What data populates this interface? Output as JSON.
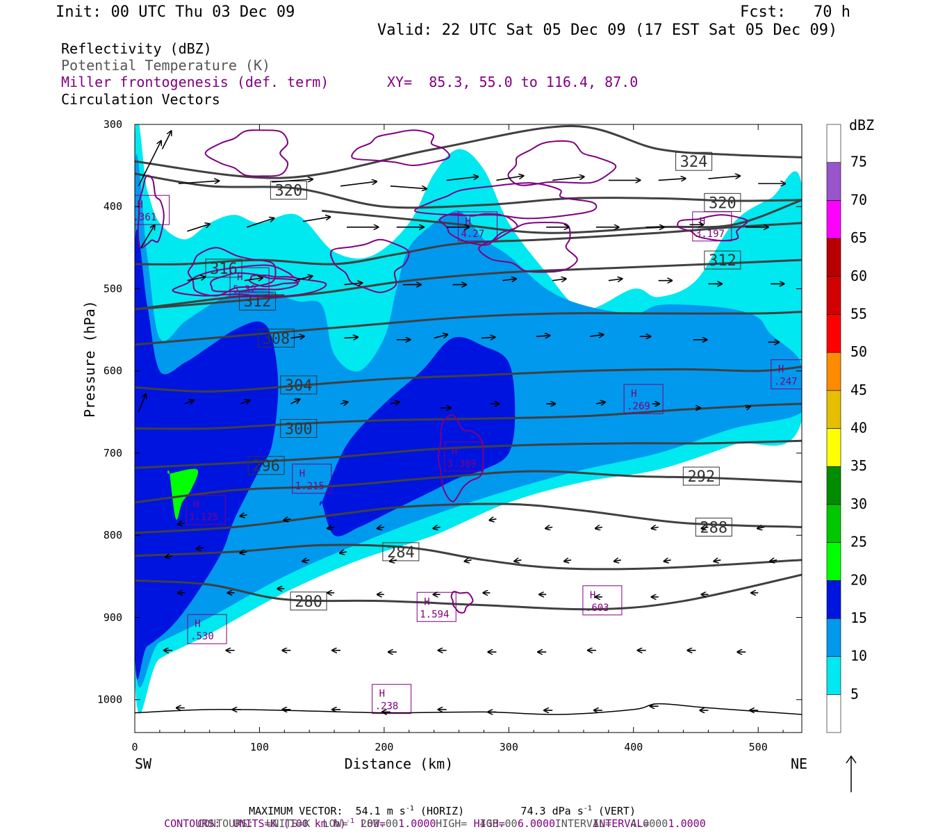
{
  "header": {
    "init": "Init: 00 UTC Thu 03 Dec 09",
    "fcst": "Fcst:   70 h",
    "valid": "Valid: 22 UTC Sat 05 Dec 09 (17 EST Sat 05 Dec 09)"
  },
  "legend": {
    "reflectivity": "Reflectivity (dBZ)",
    "theta": "Potential Temperature (K)",
    "frontogenesis": "Miller frontogenesis (def. term)",
    "xy": "XY=  85.3, 55.0 to 116.4, 87.0",
    "vectors": "Circulation Vectors"
  },
  "colorbar": {
    "title": "dBZ",
    "levels": [
      "5",
      "10",
      "15",
      "20",
      "25",
      "30",
      "35",
      "40",
      "45",
      "50",
      "55",
      "60",
      "65",
      "70",
      "75"
    ],
    "colors": [
      "#ffffff",
      "#00e8f0",
      "#0099ee",
      "#0014e0",
      "#00ff00",
      "#00c800",
      "#008c00",
      "#ffff00",
      "#e6c000",
      "#ff8c00",
      "#ff0000",
      "#d40000",
      "#b80000",
      "#ff00ff",
      "#9955cc",
      "#ffffff"
    ]
  },
  "footer": {
    "max_vector_label": "MAXIMUM VECTOR:",
    "max_horiz": "54.1 m s",
    "horiz_tag": "(HORIZ)",
    "max_vert": "74.3 dPa s",
    "vert_tag": "(VERT)",
    "sup": "-1",
    "contours1_a": "CONTOURS:  UNITS=K (100 km h)",
    "contours1_b": " LOW=  1.0000      HIGH=  6.0000      INTERVAL=   1.0000",
    "contours2": "CONTOURS:  UNITS=K  LOW=  280.00      HIGH=  408.00      INTERVAL=   4.0000"
  },
  "chart_data": {
    "type": "cross-section",
    "xlabel": "Distance (km)",
    "ylabel": "Pressure (hPa)",
    "x_ticks": [
      0,
      100,
      200,
      300,
      400,
      500
    ],
    "y_ticks": [
      300,
      400,
      500,
      600,
      700,
      800,
      900,
      1000
    ],
    "xlim": [
      0,
      535
    ],
    "ylim": [
      300,
      1040
    ],
    "left_end": "SW",
    "right_end": "NE",
    "theta_contours": [
      {
        "label": "324",
        "x": [
          0,
          120,
          240,
          350,
          420,
          480,
          535
        ],
        "p": [
          345,
          365,
          330,
          302,
          330,
          337,
          340
        ],
        "label_x": 435,
        "label_p": 345
      },
      {
        "label": "320",
        "x": [
          0,
          60,
          130,
          200,
          280,
          350,
          420,
          480,
          535
        ],
        "p": [
          360,
          375,
          378,
          400,
          398,
          390,
          390,
          393,
          392
        ],
        "label_x": 110,
        "label_p": 380
      },
      {
        "label": "320",
        "x": [
          150,
          250,
          330,
          420,
          480,
          535
        ],
        "p": [
          405,
          420,
          432,
          425,
          422,
          392
        ],
        "label_x": 458,
        "label_p": 395
      },
      {
        "label": "316",
        "x": [
          0,
          40,
          100,
          160,
          210,
          260,
          330,
          420,
          480,
          535
        ],
        "p": [
          470,
          470,
          465,
          470,
          458,
          445,
          440,
          432,
          425,
          420
        ],
        "label_x": 58,
        "label_p": 475
      },
      {
        "label": "312",
        "x": [
          0,
          80,
          150,
          220,
          300,
          380,
          460,
          535
        ],
        "p": [
          525,
          515,
          505,
          490,
          480,
          475,
          470,
          465
        ],
        "label_x": 458,
        "label_p": 465
      },
      {
        "label": "312",
        "x": [
          0,
          80,
          120
        ],
        "p": [
          525,
          510,
          508
        ],
        "label_x": 85,
        "label_p": 515
      },
      {
        "label": "308",
        "x": [
          0,
          100,
          180,
          260,
          340,
          420,
          500,
          535
        ],
        "p": [
          568,
          555,
          545,
          535,
          530,
          530,
          530,
          528
        ],
        "label_x": 100,
        "label_p": 560
      },
      {
        "label": "304",
        "x": [
          0,
          60,
          130,
          200,
          280,
          360,
          440,
          500,
          535
        ],
        "p": [
          620,
          625,
          618,
          610,
          605,
          600,
          598,
          600,
          595
        ],
        "label_x": 118,
        "label_p": 617
      },
      {
        "label": "300",
        "x": [
          0,
          60,
          120,
          200,
          280,
          360,
          440,
          500,
          535
        ],
        "p": [
          670,
          670,
          665,
          660,
          658,
          655,
          647,
          642,
          640
        ],
        "label_x": 118,
        "label_p": 670
      },
      {
        "label": "296",
        "x": [
          0,
          80,
          160,
          240,
          320,
          400,
          460,
          535
        ],
        "p": [
          718,
          712,
          705,
          695,
          690,
          688,
          688,
          685
        ],
        "label_x": 92,
        "label_p": 715
      },
      {
        "label": "292",
        "x": [
          0,
          80,
          160,
          240,
          320,
          400,
          460,
          535
        ],
        "p": [
          760,
          745,
          740,
          730,
          722,
          728,
          730,
          735
        ],
        "label_x": 441,
        "label_p": 728
      },
      {
        "label": "288",
        "x": [
          0,
          80,
          160,
          220,
          300,
          360,
          440,
          535
        ],
        "p": [
          797,
          790,
          775,
          765,
          762,
          770,
          785,
          790
        ],
        "label_x": 451,
        "label_p": 790
      },
      {
        "label": "284",
        "x": [
          0,
          80,
          150,
          220,
          280,
          340,
          420,
          535
        ],
        "p": [
          825,
          820,
          812,
          815,
          830,
          840,
          840,
          830
        ],
        "label_x": 200,
        "label_p": 820
      },
      {
        "label": "280",
        "x": [
          0,
          60,
          120,
          200,
          280,
          370,
          440,
          535
        ],
        "p": [
          855,
          860,
          878,
          880,
          885,
          890,
          880,
          848
        ],
        "label_x": 126,
        "label_p": 880
      },
      {
        "label": "",
        "x": [
          0,
          60,
          120,
          200,
          280,
          340,
          400,
          420,
          460,
          535
        ],
        "p": [
          1016,
          1012,
          1013,
          1016,
          1015,
          1018,
          1012,
          1005,
          1010,
          1018
        ],
        "label_x": 0,
        "label_p": 0
      }
    ],
    "frontogenesis_maxima": [
      {
        "tag": "H",
        "value": ".361",
        "x": 12,
        "p": 405
      },
      {
        "tag": "H",
        "value": "5.32",
        "x": 92,
        "p": 493
      },
      {
        "tag": "H",
        "value": "4.27",
        "x": 275,
        "p": 425
      },
      {
        "tag": "H",
        "value": "3.197",
        "x": 463,
        "p": 425
      },
      {
        "tag": "H",
        "value": ".269",
        "x": 408,
        "p": 635
      },
      {
        "tag": "H",
        "value": ".247",
        "x": 526,
        "p": 605
      },
      {
        "tag": "H",
        "value": "3.309",
        "x": 264,
        "p": 705
      },
      {
        "tag": "H",
        "value": "1.215",
        "x": 142,
        "p": 732
      },
      {
        "tag": "H",
        "value": "1.125",
        "x": 57,
        "p": 770
      },
      {
        "tag": "H",
        "value": ".530",
        "x": 58,
        "p": 915
      },
      {
        "tag": "H",
        "value": "1.594",
        "x": 242,
        "p": 888
      },
      {
        "tag": "H",
        "value": ".603",
        "x": 375,
        "p": 880
      },
      {
        "tag": "H",
        "value": ".238",
        "x": 206,
        "p": 1000
      }
    ],
    "reflectivity_regions": [
      {
        "dbz": 5,
        "x": [
          0,
          10,
          20,
          40,
          60,
          80,
          100,
          130,
          160,
          190,
          220,
          240,
          260,
          280,
          300,
          330,
          360,
          400,
          420,
          450,
          480,
          510,
          535,
          535,
          480,
          420,
          360,
          300,
          240,
          180,
          120,
          60,
          20,
          0
        ],
        "p": [
          325,
          380,
          420,
          440,
          420,
          410,
          420,
          410,
          455,
          460,
          420,
          360,
          330,
          355,
          420,
          480,
          525,
          500,
          510,
          490,
          420,
          390,
          375,
          660,
          690,
          720,
          735,
          760,
          800,
          830,
          870,
          920,
          950,
          975
        ]
      },
      {
        "dbz": 10,
        "x": [
          0,
          10,
          20,
          40,
          60,
          80,
          100,
          130,
          150,
          160,
          180,
          200,
          210,
          220,
          240,
          250,
          260,
          270,
          280,
          300,
          330,
          360,
          400,
          420,
          450,
          480,
          500,
          510,
          530,
          535,
          535,
          480,
          420,
          360,
          300,
          240,
          180,
          120,
          60,
          20,
          0
        ],
        "p": [
          360,
          460,
          560,
          540,
          520,
          505,
          500,
          515,
          520,
          580,
          600,
          560,
          500,
          450,
          420,
          410,
          405,
          420,
          440,
          460,
          500,
          520,
          530,
          520,
          520,
          525,
          535,
          555,
          580,
          600,
          650,
          670,
          700,
          720,
          745,
          775,
          810,
          850,
          900,
          930,
          945
        ]
      },
      {
        "dbz": 15,
        "x": [
          0,
          10,
          20,
          40,
          60,
          80,
          100,
          110,
          115,
          110,
          100,
          80,
          70,
          50,
          30,
          10,
          0
        ],
        "p": [
          450,
          520,
          600,
          590,
          570,
          550,
          540,
          560,
          620,
          690,
          720,
          780,
          820,
          870,
          910,
          935,
          940
        ]
      },
      {
        "dbz": 15,
        "x": [
          150,
          170,
          200,
          230,
          255,
          280,
          300,
          305,
          300,
          280,
          260,
          240,
          220,
          200,
          180,
          160,
          150
        ],
        "p": [
          760,
          690,
          640,
          600,
          560,
          570,
          590,
          650,
          700,
          720,
          730,
          745,
          760,
          775,
          790,
          800,
          760
        ]
      },
      {
        "dbz": 20,
        "x": [
          28,
          50,
          45,
          38,
          33,
          28
        ],
        "p": [
          725,
          720,
          745,
          760,
          780,
          725
        ]
      }
    ],
    "vectors": [
      {
        "x": 3,
        "p": 375,
        "u": 25,
        "w": 50
      },
      {
        "x": 22,
        "p": 330,
        "u": 10,
        "w": 20
      },
      {
        "x": 5,
        "p": 450,
        "u": 15,
        "w": 25
      },
      {
        "x": 35,
        "p": 372,
        "u": 45,
        "w": 3
      },
      {
        "x": 110,
        "p": 370,
        "u": 45,
        "w": 3
      },
      {
        "x": 165,
        "p": 375,
        "u": 40,
        "w": 5
      },
      {
        "x": 205,
        "p": 375,
        "u": 40,
        "w": -3
      },
      {
        "x": 250,
        "p": 368,
        "u": 35,
        "w": 4
      },
      {
        "x": 290,
        "p": 368,
        "u": 30,
        "w": 5
      },
      {
        "x": 335,
        "p": 368,
        "u": 35,
        "w": 4
      },
      {
        "x": 380,
        "p": 368,
        "u": 35,
        "w": 0
      },
      {
        "x": 420,
        "p": 368,
        "u": 30,
        "w": 2
      },
      {
        "x": 460,
        "p": 366,
        "u": 35,
        "w": 3
      },
      {
        "x": 500,
        "p": 372,
        "u": 30,
        "w": 0
      },
      {
        "x": 42,
        "p": 430,
        "u": 25,
        "w": 8
      },
      {
        "x": 90,
        "p": 425,
        "u": 30,
        "w": 10
      },
      {
        "x": 135,
        "p": 418,
        "u": 30,
        "w": 5
      },
      {
        "x": 170,
        "p": 425,
        "u": 35,
        "w": 0
      },
      {
        "x": 210,
        "p": 425,
        "u": 30,
        "w": 0
      },
      {
        "x": 250,
        "p": 425,
        "u": 25,
        "w": 0
      },
      {
        "x": 330,
        "p": 425,
        "u": 25,
        "w": 0
      },
      {
        "x": 370,
        "p": 425,
        "u": 25,
        "w": 0
      },
      {
        "x": 410,
        "p": 425,
        "u": 20,
        "w": 0
      },
      {
        "x": 445,
        "p": 422,
        "u": 15,
        "w": 0
      },
      {
        "x": 490,
        "p": 425,
        "u": 25,
        "w": 0
      },
      {
        "x": 42,
        "p": 490,
        "u": 20,
        "w": 4
      },
      {
        "x": 88,
        "p": 490,
        "u": 20,
        "w": 3
      },
      {
        "x": 128,
        "p": 490,
        "u": 20,
        "w": 5
      },
      {
        "x": 168,
        "p": 495,
        "u": 20,
        "w": 2
      },
      {
        "x": 215,
        "p": 495,
        "u": 20,
        "w": 0
      },
      {
        "x": 255,
        "p": 495,
        "u": 15,
        "w": 0
      },
      {
        "x": 295,
        "p": 490,
        "u": 15,
        "w": 2
      },
      {
        "x": 335,
        "p": 490,
        "u": 15,
        "w": 2
      },
      {
        "x": 380,
        "p": 490,
        "u": 15,
        "w": 2
      },
      {
        "x": 420,
        "p": 490,
        "u": 15,
        "w": 0
      },
      {
        "x": 460,
        "p": 494,
        "u": 15,
        "w": 0
      },
      {
        "x": 510,
        "p": 494,
        "u": 15,
        "w": 0
      },
      {
        "x": 125,
        "p": 560,
        "u": 15,
        "w": 2
      },
      {
        "x": 168,
        "p": 560,
        "u": 15,
        "w": 1
      },
      {
        "x": 210,
        "p": 562,
        "u": 15,
        "w": 0
      },
      {
        "x": 240,
        "p": 560,
        "u": 15,
        "w": 4
      },
      {
        "x": 278,
        "p": 560,
        "u": 15,
        "w": 1
      },
      {
        "x": 322,
        "p": 558,
        "u": 15,
        "w": 1
      },
      {
        "x": 365,
        "p": 558,
        "u": 15,
        "w": 2
      },
      {
        "x": 405,
        "p": 558,
        "u": 12,
        "w": 0
      },
      {
        "x": 448,
        "p": 562,
        "u": 15,
        "w": 0
      },
      {
        "x": 508,
        "p": 565,
        "u": 12,
        "w": 0
      },
      {
        "x": 3,
        "p": 650,
        "u": 8,
        "w": 20
      },
      {
        "x": 40,
        "p": 640,
        "u": 10,
        "w": 4
      },
      {
        "x": 85,
        "p": 640,
        "u": 10,
        "w": 4
      },
      {
        "x": 125,
        "p": 640,
        "u": 10,
        "w": 5
      },
      {
        "x": 165,
        "p": 640,
        "u": 8,
        "w": 2
      },
      {
        "x": 205,
        "p": 640,
        "u": 10,
        "w": 2
      },
      {
        "x": 245,
        "p": 645,
        "u": 12,
        "w": 0
      },
      {
        "x": 285,
        "p": 640,
        "u": 10,
        "w": 0
      },
      {
        "x": 330,
        "p": 640,
        "u": 10,
        "w": 0
      },
      {
        "x": 370,
        "p": 640,
        "u": 10,
        "w": 2
      },
      {
        "x": 415,
        "p": 640,
        "u": 8,
        "w": 0
      },
      {
        "x": 450,
        "p": 645,
        "u": 5,
        "w": 0
      },
      {
        "x": 490,
        "p": 645,
        "u": 5,
        "w": 2
      }
    ]
  }
}
